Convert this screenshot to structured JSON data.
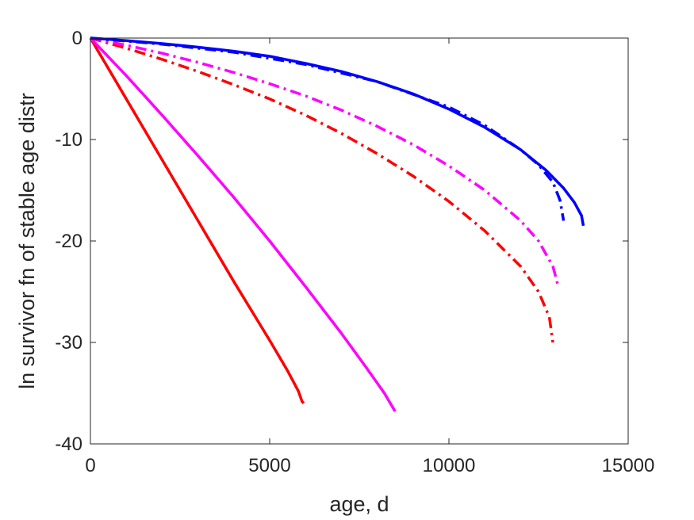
{
  "chart_data": {
    "type": "line",
    "title": "",
    "xlabel": "age, d",
    "ylabel": "ln survivor fn of stable age distr",
    "xlim": [
      0,
      15000
    ],
    "ylim": [
      -40,
      0
    ],
    "xticks": [
      0,
      5000,
      10000,
      15000
    ],
    "xtick_labels": [
      "0",
      "5000",
      "10000",
      "15000"
    ],
    "yticks": [
      0,
      -10,
      -20,
      -30,
      -40
    ],
    "ytick_labels": [
      "0",
      "-10",
      "-20",
      "-30",
      "-40"
    ],
    "grid": false,
    "legend": "none",
    "series": [
      {
        "color": "#ff0000",
        "style": "solid",
        "points": [
          [
            0,
            0
          ],
          [
            1000,
            -6.0
          ],
          [
            2000,
            -12.0
          ],
          [
            3000,
            -18.0
          ],
          [
            4000,
            -24.0
          ],
          [
            5000,
            -29.8
          ],
          [
            5500,
            -32.8
          ],
          [
            5800,
            -34.8
          ],
          [
            5900,
            -35.8
          ],
          [
            5950,
            -36.0
          ]
        ]
      },
      {
        "color": "#ff00ff",
        "style": "solid",
        "points": [
          [
            0,
            0
          ],
          [
            1000,
            -3.7
          ],
          [
            2000,
            -7.6
          ],
          [
            3000,
            -11.6
          ],
          [
            4000,
            -15.7
          ],
          [
            5000,
            -20.0
          ],
          [
            6000,
            -24.5
          ],
          [
            7000,
            -29.1
          ],
          [
            7700,
            -32.5
          ],
          [
            8200,
            -35.0
          ],
          [
            8400,
            -36.2
          ],
          [
            8500,
            -36.8
          ]
        ]
      },
      {
        "color": "#ff0000",
        "style": "dashdot",
        "points": [
          [
            0,
            0
          ],
          [
            1000,
            -1.0
          ],
          [
            2000,
            -2.1
          ],
          [
            3000,
            -3.3
          ],
          [
            4000,
            -4.6
          ],
          [
            5000,
            -6.0
          ],
          [
            6000,
            -7.6
          ],
          [
            7000,
            -9.4
          ],
          [
            8000,
            -11.4
          ],
          [
            9000,
            -13.6
          ],
          [
            10000,
            -16.1
          ],
          [
            11000,
            -19.0
          ],
          [
            12000,
            -22.5
          ],
          [
            12500,
            -25.0
          ],
          [
            12800,
            -27.5
          ],
          [
            12900,
            -30.0
          ]
        ]
      },
      {
        "color": "#ff00ff",
        "style": "dashdot",
        "points": [
          [
            0,
            0
          ],
          [
            1000,
            -0.7
          ],
          [
            2000,
            -1.5
          ],
          [
            3000,
            -2.4
          ],
          [
            4000,
            -3.4
          ],
          [
            5000,
            -4.5
          ],
          [
            6000,
            -5.7
          ],
          [
            7000,
            -7.1
          ],
          [
            8000,
            -8.7
          ],
          [
            9000,
            -10.5
          ],
          [
            10000,
            -12.6
          ],
          [
            11000,
            -15.0
          ],
          [
            12000,
            -18.0
          ],
          [
            12500,
            -20.0
          ],
          [
            12900,
            -22.5
          ],
          [
            13050,
            -24.5
          ]
        ]
      },
      {
        "color": "#0000ff",
        "style": "dashdot",
        "points": [
          [
            0,
            0
          ],
          [
            2000,
            -0.6
          ],
          [
            4000,
            -1.4
          ],
          [
            6000,
            -2.6
          ],
          [
            8000,
            -4.3
          ],
          [
            10000,
            -6.8
          ],
          [
            11000,
            -8.6
          ],
          [
            12000,
            -11.0
          ],
          [
            12500,
            -12.5
          ],
          [
            12900,
            -14.2
          ],
          [
            13100,
            -16.0
          ],
          [
            13200,
            -18.0
          ]
        ]
      },
      {
        "color": "#0000ff",
        "style": "solid",
        "points": [
          [
            0,
            0
          ],
          [
            1000,
            -0.25
          ],
          [
            2000,
            -0.55
          ],
          [
            3000,
            -0.9
          ],
          [
            4000,
            -1.3
          ],
          [
            5000,
            -1.8
          ],
          [
            6000,
            -2.5
          ],
          [
            7000,
            -3.3
          ],
          [
            8000,
            -4.3
          ],
          [
            9000,
            -5.5
          ],
          [
            10000,
            -7.0
          ],
          [
            11000,
            -8.8
          ],
          [
            12000,
            -11.0
          ],
          [
            12700,
            -13.0
          ],
          [
            13200,
            -14.8
          ],
          [
            13500,
            -16.2
          ],
          [
            13700,
            -17.5
          ],
          [
            13750,
            -18.5
          ]
        ]
      }
    ]
  }
}
